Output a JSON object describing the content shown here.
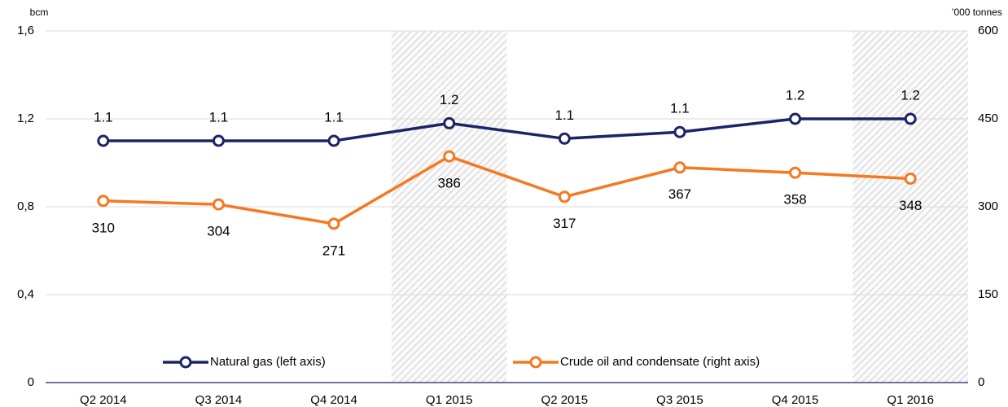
{
  "chart_data": {
    "type": "line",
    "y_axis_label": "bcm",
    "y2_axis_label": "'000 tonnes",
    "categories": [
      "Q2 2014",
      "Q3 2014",
      "Q4 2014",
      "Q1 2015",
      "Q2 2015",
      "Q3 2015",
      "Q4 2015",
      "Q1 2016"
    ],
    "highlight_indices": [
      3,
      7
    ],
    "series": [
      {
        "name": "Natural gas (left axis)",
        "color": "#1b2566",
        "values": [
          1.1,
          1.1,
          1.1,
          1.18,
          1.11,
          1.14,
          1.2,
          1.2
        ],
        "value_labels": [
          "1.1",
          "1.1",
          "1.1",
          "1.2",
          "1.1",
          "1.1",
          "1.2",
          "1.2"
        ]
      },
      {
        "name": "Crude oil and condensate (right axis)",
        "color": "#f47920",
        "axis": "y2",
        "values": [
          310,
          304,
          271,
          386,
          317,
          367,
          358,
          348
        ]
      }
    ],
    "ylim": [
      0,
      1.6
    ],
    "yticks": [
      0,
      {
        "value": 0.4,
        "label": "0,4"
      },
      {
        "value": 0.8,
        "label": "0,8"
      },
      {
        "value": 1.2,
        "label": "1,2"
      },
      {
        "value": 1.6,
        "label": "1,6"
      }
    ],
    "y2lim": [
      0,
      600
    ],
    "y2ticks": [
      0,
      150,
      300,
      450,
      600
    ],
    "grid": true,
    "legend": "bottom"
  }
}
